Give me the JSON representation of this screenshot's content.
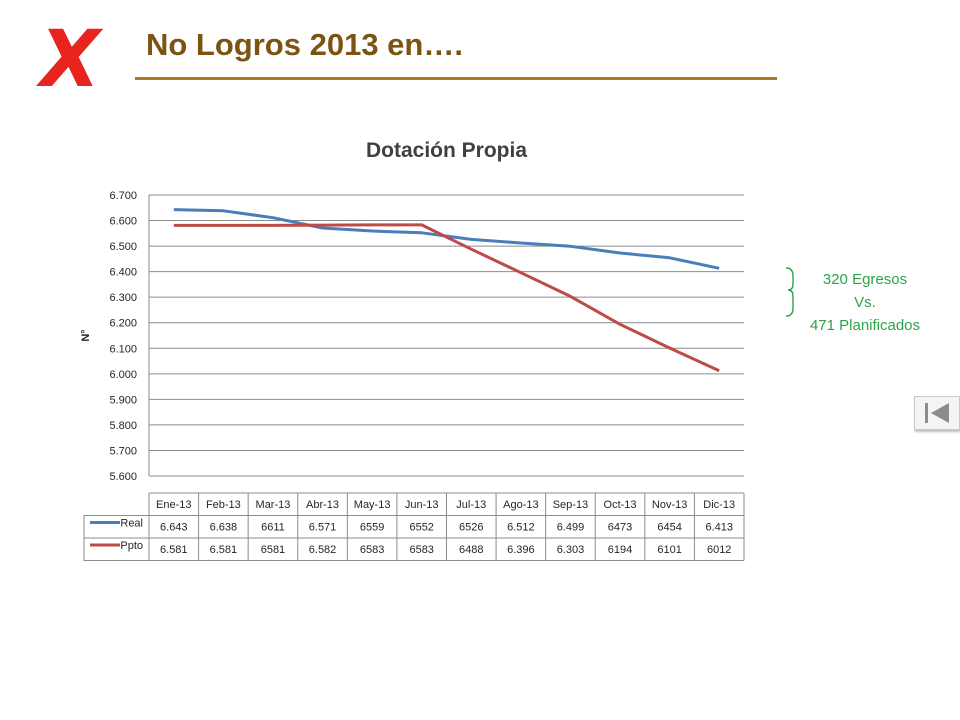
{
  "slide": {
    "marker": "X",
    "title": "No Logros 2013 en….",
    "annotation": [
      "320 Egresos",
      "Vs.",
      "471 Planificados"
    ]
  },
  "icons": {
    "navigation": "first-slide-icon"
  },
  "colors": {
    "real": "#4a7ebb",
    "ppto": "#be4b48",
    "title": "#7b5412",
    "marker": "#e8241e",
    "annotation": "#2ea34a"
  },
  "chart_data": {
    "type": "line",
    "title": "Dotación Propia",
    "ylabel": "N°",
    "xlabel": "",
    "ylim": [
      5600,
      6700
    ],
    "yticks": [
      6700,
      6600,
      6500,
      6400,
      6300,
      6200,
      6100,
      6000,
      5900,
      5800,
      5700,
      5600
    ],
    "ytick_labels": [
      "6.700",
      "6.600",
      "6.500",
      "6.400",
      "6.300",
      "6.200",
      "6.100",
      "6.000",
      "5.900",
      "5.800",
      "5.700",
      "5.600"
    ],
    "grid": true,
    "legend": "data-table",
    "categories": [
      "Ene-13",
      "Feb-13",
      "Mar-13",
      "Abr-13",
      "May-13",
      "Jun-13",
      "Jul-13",
      "Ago-13",
      "Sep-13",
      "Oct-13",
      "Nov-13",
      "Dic-13"
    ],
    "series": [
      {
        "name": "Real",
        "color": "#4a7ebb",
        "values": [
          6643,
          6638,
          6611,
          6571,
          6559,
          6552,
          6526,
          6512,
          6499,
          6473,
          6454,
          6413
        ],
        "labels": [
          "6.643",
          "6.638",
          "6611",
          "6.571",
          "6559",
          "6552",
          "6526",
          "6.512",
          "6.499",
          "6473",
          "6454",
          "6.413"
        ]
      },
      {
        "name": "Ppto",
        "color": "#be4b48",
        "values": [
          6581,
          6581,
          6581,
          6582,
          6583,
          6583,
          6488,
          6396,
          6303,
          6194,
          6101,
          6012
        ],
        "labels": [
          "6.581",
          "6.581",
          "6581",
          "6.582",
          "6583",
          "6583",
          "6488",
          "6.396",
          "6.303",
          "6194",
          "6101",
          "6012"
        ]
      }
    ]
  }
}
